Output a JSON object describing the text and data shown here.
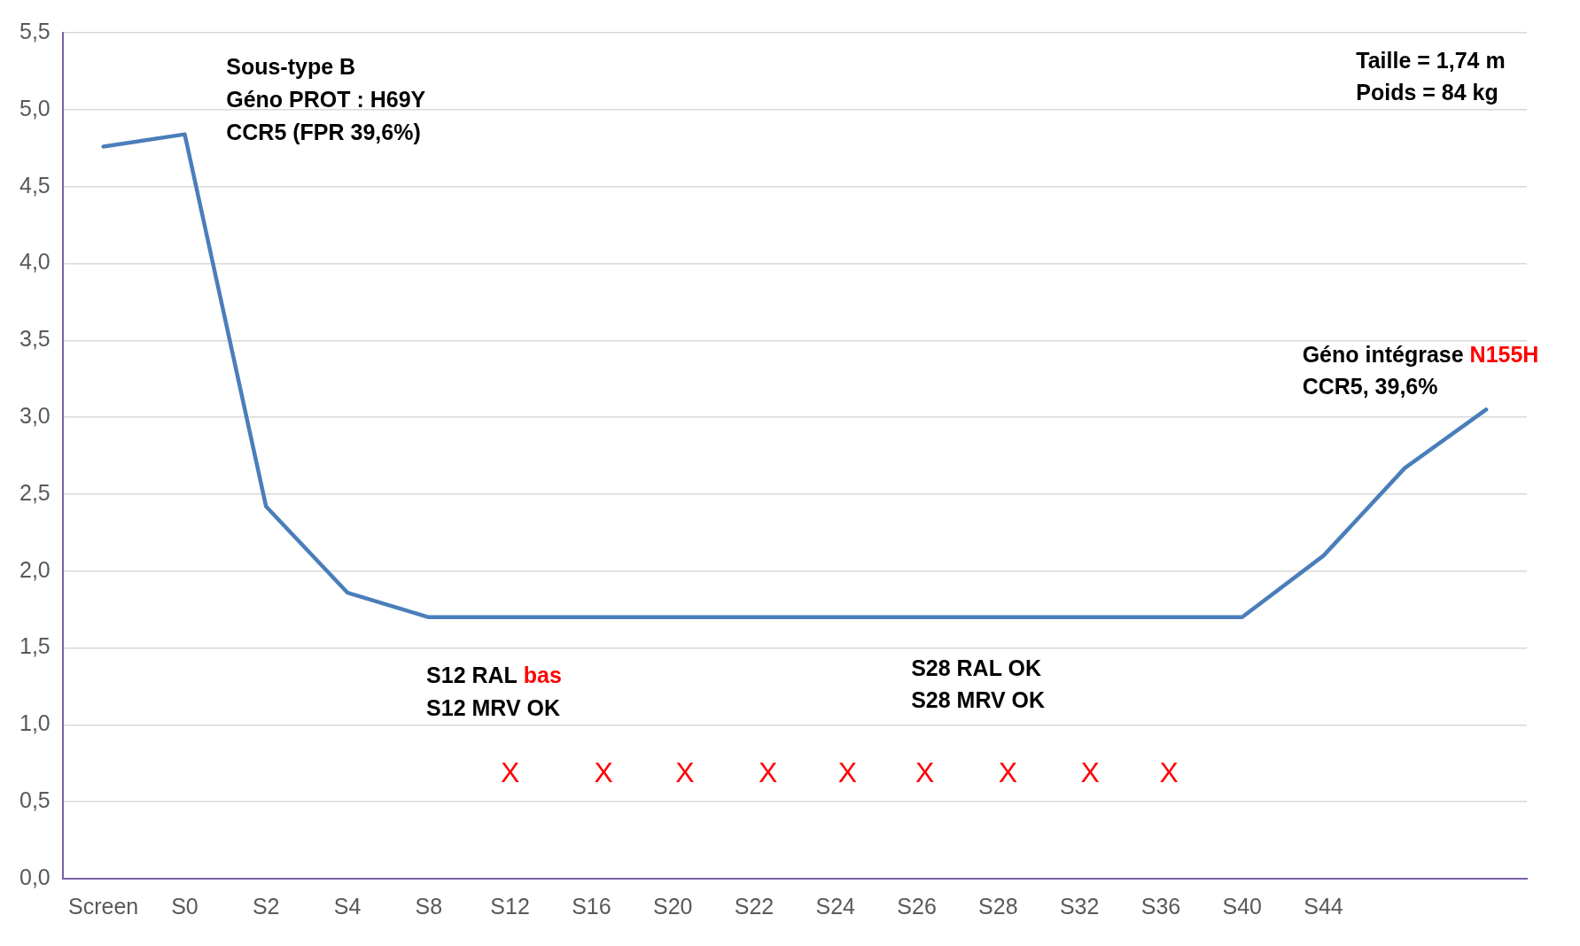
{
  "chart_data": {
    "type": "line",
    "categories": [
      "Screen",
      "S0",
      "S2",
      "S4",
      "S8",
      "S12",
      "S16",
      "S20",
      "S22",
      "S24",
      "S26",
      "S28",
      "S32",
      "S36",
      "S40",
      "S44",
      null,
      null
    ],
    "series": [
      {
        "color": "#4a7ebb",
        "values": [
          4.76,
          4.84,
          2.42,
          1.86,
          1.7,
          1.7,
          1.7,
          1.7,
          1.7,
          1.7,
          1.7,
          1.7,
          1.7,
          1.7,
          1.7,
          2.1,
          2.67,
          3.05
        ]
      }
    ],
    "ylim": [
      0,
      5.5
    ],
    "yticks": [
      {
        "value": 0,
        "label": "0,0"
      },
      {
        "value": 0.5,
        "label": "0,5"
      },
      {
        "value": 1,
        "label": "1,0"
      },
      {
        "value": 1.5,
        "label": "1,5"
      },
      {
        "value": 2,
        "label": "2,0"
      },
      {
        "value": 2.5,
        "label": "2,5"
      },
      {
        "value": 3,
        "label": "3,0"
      },
      {
        "value": 3.5,
        "label": "3,5"
      },
      {
        "value": 4,
        "label": "4,0"
      },
      {
        "value": 4.5,
        "label": "4,5"
      },
      {
        "value": 5,
        "label": "5,0"
      },
      {
        "value": 5.5,
        "label": "5,5"
      }
    ],
    "grid": "y",
    "legend": false,
    "marker": "none",
    "line_style": "solid",
    "annotations": [
      "Sous-type B",
      "Géno PROT : H69Y",
      "CCR5 (FPR 39,6%)",
      "Taille = 1,74 m",
      "Poids = 84 kg",
      "Géno intégrase N155H",
      "CCR5, 39,6%",
      "S12 RAL bas",
      "S12 MRV OK",
      "S28 RAL OK",
      "S28 MRV OK",
      "X",
      "X",
      "X",
      "X",
      "X",
      "X",
      "X",
      "X",
      "X"
    ]
  }
}
